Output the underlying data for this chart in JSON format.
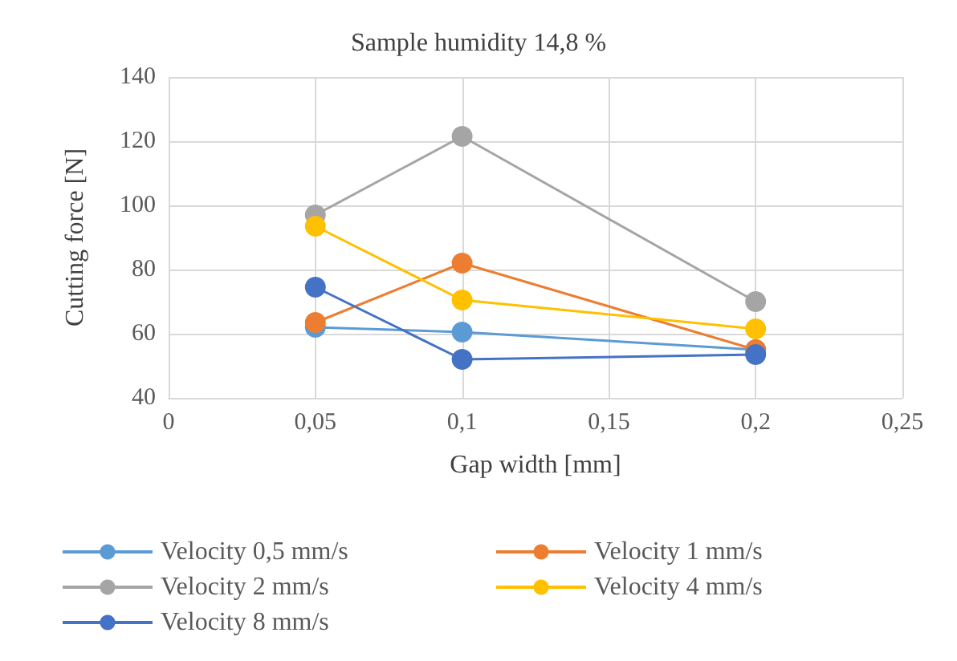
{
  "chart_data": {
    "type": "line",
    "title": "Sample humidity 14,8 %",
    "xlabel": "Gap width [mm]",
    "ylabel": "Cutting force [N]",
    "x": [
      0.05,
      0.1,
      0.2
    ],
    "series": [
      {
        "name": "Velocity 0,5 mm/s",
        "color": "#5b9bd5",
        "values": [
          62,
          60.5,
          55
        ]
      },
      {
        "name": "Velocity 1 mm/s",
        "color": "#ed7d31",
        "values": [
          63.5,
          82,
          55
        ]
      },
      {
        "name": "Velocity 2 mm/s",
        "color": "#a5a5a5",
        "values": [
          97,
          121.5,
          70
        ]
      },
      {
        "name": "Velocity 4 mm/s",
        "color": "#ffc000",
        "values": [
          93.5,
          70.5,
          61.5
        ]
      },
      {
        "name": "Velocity 8 mm/s",
        "color": "#4472c4",
        "values": [
          74.5,
          52,
          53.5
        ]
      }
    ],
    "xlim": [
      0,
      0.25
    ],
    "xticks": [
      0,
      {
        "value": 0.05,
        "label": "0,05"
      },
      {
        "value": 0.1,
        "label": "0,1"
      },
      {
        "value": 0.15,
        "label": "0,15"
      },
      {
        "value": 0.2,
        "label": "0,2"
      },
      {
        "value": 0.25,
        "label": "0,25"
      }
    ],
    "ylim": [
      40,
      140
    ],
    "yticks": [
      40,
      60,
      80,
      100,
      120,
      140
    ],
    "grid": true,
    "legend": "bottom",
    "marker": "circle",
    "line_style": "solid"
  }
}
